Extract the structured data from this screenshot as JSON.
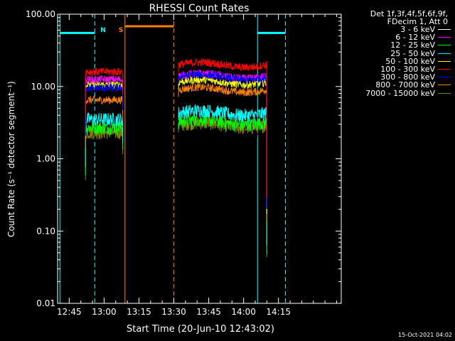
{
  "chart_data": {
    "type": "line",
    "title": "RHESSI Count Rates",
    "xlabel": "Start Time (20-Jun-10 12:43:02)",
    "ylabel": "Count Rate (s⁻¹ detector segment⁻¹)",
    "yscale": "log",
    "ylim": [
      0.01,
      100
    ],
    "xlim_minutes_after_12_00": [
      40,
      162
    ],
    "x_ticks": [
      "12:45",
      "13:00",
      "13:15",
      "13:30",
      "13:45",
      "14:00",
      "14:15"
    ],
    "x_tick_minutes_after_12_00": [
      45,
      60,
      75,
      90,
      105,
      120,
      135
    ],
    "y_ticks": [
      "100.00",
      "10.00",
      "1.00",
      "0.10",
      "0.01"
    ],
    "y_tick_values": [
      100,
      10,
      1,
      0.1,
      0.01
    ],
    "legend_header": [
      "Det 1f,3f,4f,5f,6f,9f,",
      "FDecim 1, Att 0"
    ],
    "legend_placement": "top-right outside",
    "series": [
      {
        "name": "3 - 6 keV",
        "color": "#000000",
        "legend_color": "#ffffff",
        "segment1_level": 1.9,
        "segment2_level": 2.4
      },
      {
        "name": "6 - 12 keV",
        "color": "#ff00ff",
        "segment1_level": 12.5,
        "segment2_level": 14.0
      },
      {
        "name": "12 - 25 keV",
        "color": "#00ff00",
        "segment1_level": 2.7,
        "segment2_level": 3.2
      },
      {
        "name": "25 - 50 keV",
        "color": "#00ffff",
        "segment1_level": 3.5,
        "segment2_level": 4.3
      },
      {
        "name": "50 - 100 keV",
        "color": "#ffff00",
        "segment1_level": 10.5,
        "segment2_level": 11.5
      },
      {
        "name": "100 - 300 keV",
        "color": "#ff0000",
        "segment1_level": 16.0,
        "segment2_level": 20.0
      },
      {
        "name": "300 - 800 keV",
        "color": "#0000ff",
        "segment1_level": 9.5,
        "segment2_level": 13.5
      },
      {
        "name": "800 - 7000 keV",
        "color": "#ff8000",
        "segment1_level": 6.5,
        "segment2_level": 9.0
      },
      {
        "name": "7000 - 15000 keV",
        "color": "#808000",
        "segment1_level": 2.3,
        "segment2_level": 2.9
      }
    ],
    "data_segments": [
      {
        "start": "12:52",
        "end": "13:08"
      },
      {
        "start": "13:32",
        "end": "14:10"
      }
    ],
    "flags": [
      {
        "label": "N",
        "color": "#00ffff",
        "start": "12:41",
        "end": "12:56",
        "level": 55
      },
      {
        "label": "S",
        "color": "#ff8000",
        "start": "13:09",
        "end": "13:30",
        "level": 68
      },
      {
        "label": "",
        "color": "#00ffff",
        "start": "14:06",
        "end": "14:18",
        "level": 55
      }
    ],
    "timestamp": "15-Oct-2021 04:02"
  }
}
